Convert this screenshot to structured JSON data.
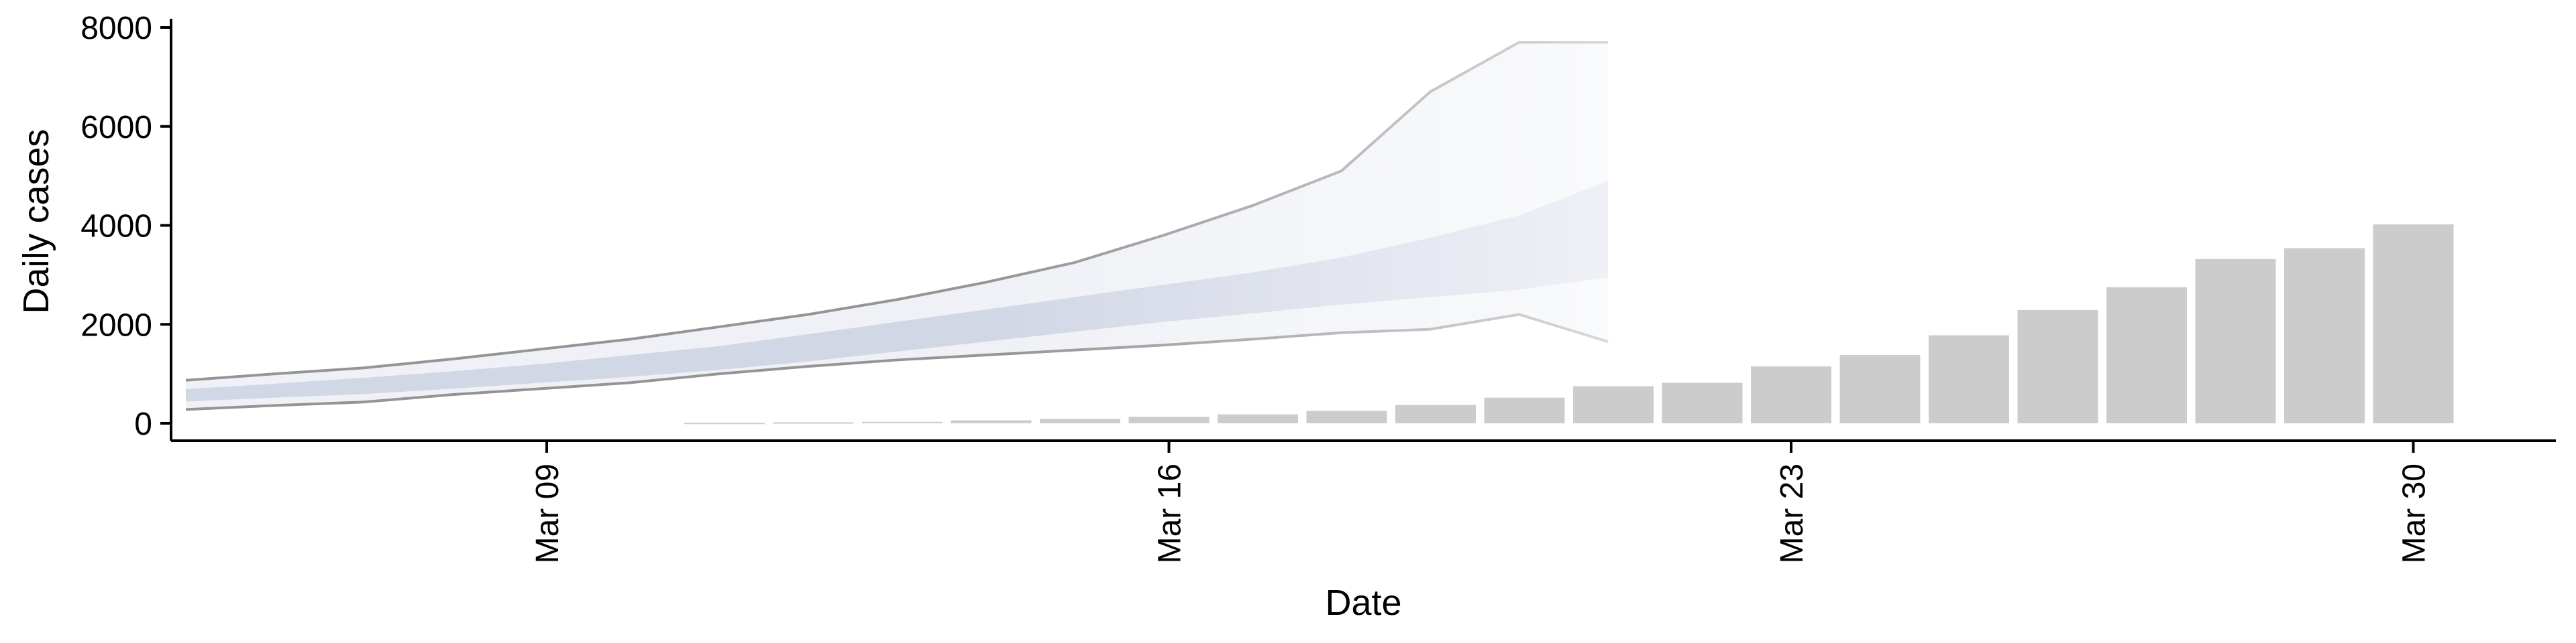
{
  "chart_data": {
    "type": "bar",
    "xlabel": "Date",
    "ylabel": "Daily cases",
    "x_ticks": [
      {
        "date": "Mar 09",
        "day": 9
      },
      {
        "date": "Mar 16",
        "day": 16
      },
      {
        "date": "Mar 23",
        "day": 23
      },
      {
        "date": "Mar 30",
        "day": 30
      }
    ],
    "y_ticks": [
      0,
      2000,
      4000,
      6000,
      8000
    ],
    "xlim": [
      "Mar 04",
      "Mar 31"
    ],
    "ylim": [
      -400,
      8200
    ],
    "grid": false,
    "legend": "none",
    "bars": {
      "color": "#cccccc",
      "days": [
        11,
        12,
        13,
        14,
        15,
        16,
        17,
        18,
        19,
        20,
        21,
        22,
        23,
        24,
        25,
        26,
        27,
        28,
        29,
        30
      ],
      "values": [
        10,
        20,
        30,
        60,
        90,
        130,
        180,
        250,
        370,
        520,
        750,
        820,
        1150,
        1380,
        1780,
        2290,
        2750,
        3320,
        3540,
        4020
      ]
    },
    "forecast": {
      "days": [
        5,
        6,
        7,
        8,
        9,
        10,
        11,
        12,
        13,
        14,
        15,
        16,
        17,
        18,
        19,
        20,
        21
      ],
      "outer_upper": [
        870,
        1000,
        1120,
        1300,
        1500,
        1700,
        1950,
        2200,
        2500,
        2850,
        3250,
        3800,
        4400,
        5100,
        6700,
        7700,
        7700
      ],
      "outer_lower": [
        280,
        360,
        430,
        580,
        700,
        820,
        1000,
        1150,
        1280,
        1380,
        1480,
        1580,
        1700,
        1830,
        1900,
        2200,
        1650
      ],
      "inner_upper": [
        690,
        800,
        920,
        1050,
        1200,
        1380,
        1560,
        1800,
        2050,
        2300,
        2550,
        2800,
        3050,
        3350,
        3750,
        4200,
        4900
      ],
      "inner_lower": [
        440,
        520,
        590,
        700,
        820,
        940,
        1080,
        1250,
        1450,
        1650,
        1850,
        2050,
        2220,
        2400,
        2550,
        2700,
        2950
      ],
      "line_color": "#8a8a8a",
      "outer_fill": "#eceef4",
      "inner_fill": "#c8cde0"
    }
  }
}
